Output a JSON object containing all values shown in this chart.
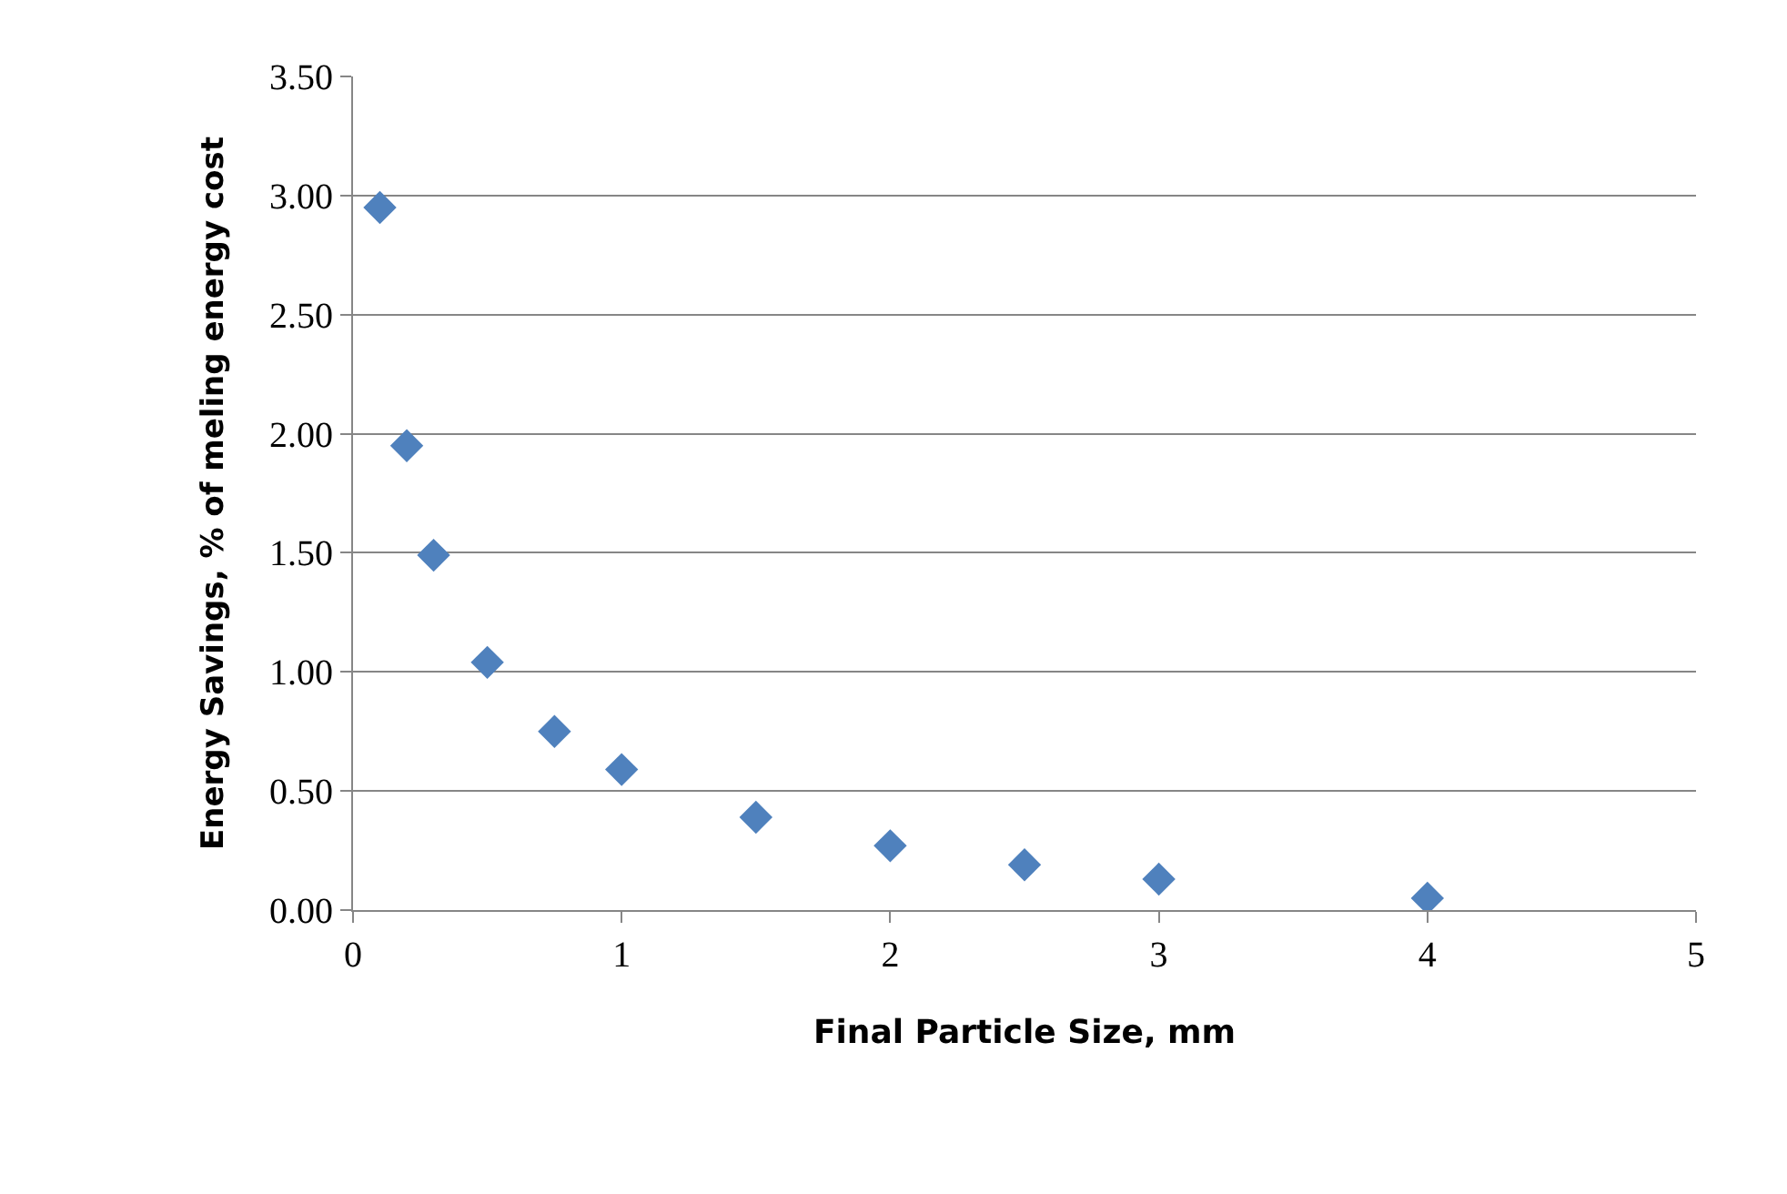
{
  "chart_data": {
    "type": "scatter",
    "xlabel": "Final Particle Size, mm",
    "ylabel": "Energy Savings, % of meling energy cost",
    "x": [
      0.1,
      0.2,
      0.3,
      0.5,
      0.75,
      1,
      1.5,
      2,
      2.5,
      3,
      4
    ],
    "series": [
      {
        "color": "#4f81bd",
        "values": [
          2.95,
          1.95,
          1.49,
          1.04,
          0.75,
          0.59,
          0.39,
          0.27,
          0.19,
          0.13,
          0.05
        ]
      }
    ],
    "xlim": [
      0,
      5
    ],
    "xticks": [
      0,
      1,
      2,
      3,
      4,
      5
    ],
    "ylim": [
      0,
      3.5
    ],
    "yticks": [
      {
        "value": 0,
        "label": "0.00"
      },
      {
        "value": 0.5,
        "label": "0.50"
      },
      {
        "value": 1,
        "label": "1.00"
      },
      {
        "value": 1.5,
        "label": "1.50"
      },
      {
        "value": 2,
        "label": "2.00"
      },
      {
        "value": 2.5,
        "label": "2.50"
      },
      {
        "value": 3,
        "label": "3.00"
      },
      {
        "value": 3.5,
        "label": "3.50"
      }
    ],
    "grid": "y",
    "marker": "diamond"
  }
}
